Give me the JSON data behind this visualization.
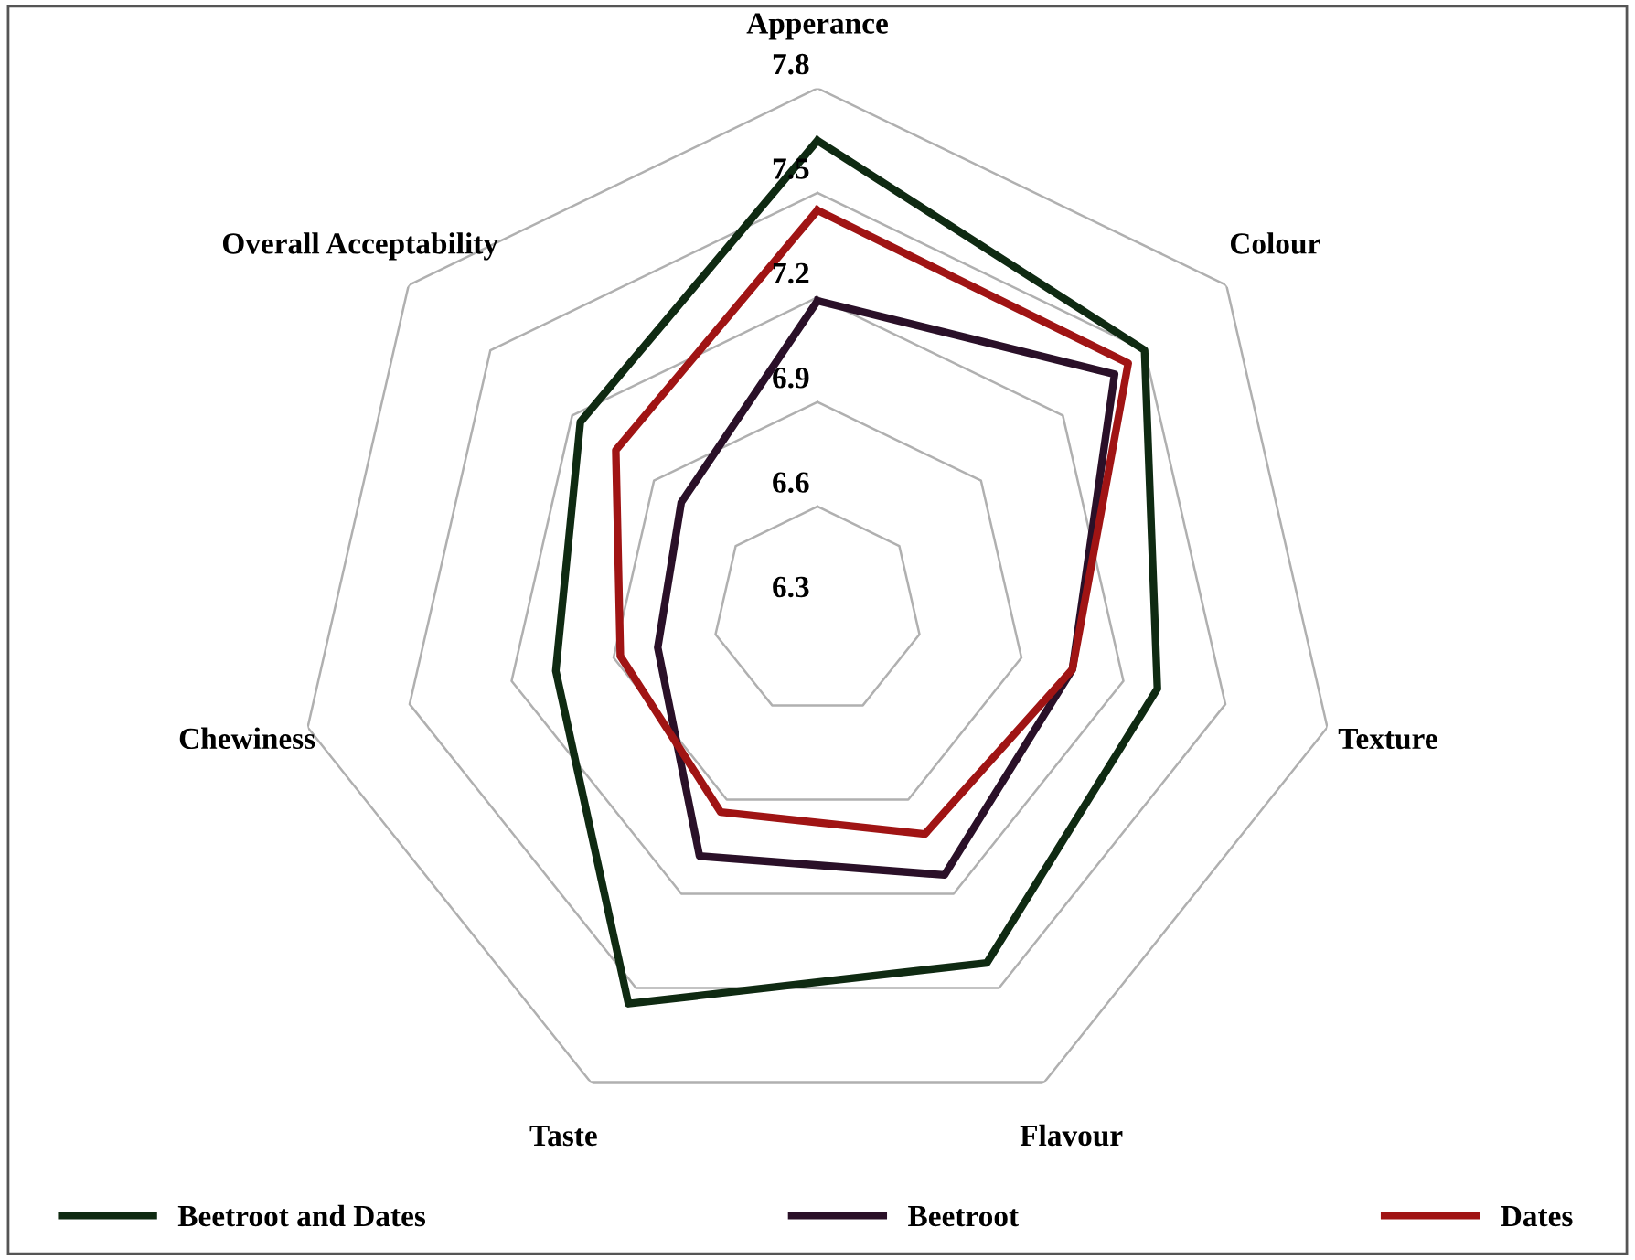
{
  "chart_data": {
    "type": "radar",
    "categories": [
      "Apperance",
      "Colour",
      "Texture",
      "Flavour",
      "Taste",
      "Chewiness",
      "Overall Acceptability"
    ],
    "series": [
      {
        "name": "Beetroot and Dates",
        "color": "#0f2a12",
        "values": [
          7.65,
          7.5,
          7.3,
          7.42,
          7.55,
          7.07,
          7.17
        ]
      },
      {
        "name": "Beetroot",
        "color": "#2a1028",
        "values": [
          7.19,
          7.39,
          7.05,
          7.14,
          7.08,
          6.77,
          6.8
        ]
      },
      {
        "name": "Dates",
        "color": "#a01414",
        "values": [
          7.45,
          7.44,
          7.05,
          7.01,
          6.94,
          6.88,
          7.04
        ]
      }
    ],
    "ylim": [
      6.3,
      7.8
    ],
    "yticks": [
      6.3,
      6.6,
      6.9,
      7.2,
      7.5,
      7.8
    ],
    "grid": true,
    "legend": "bottom",
    "marker": "none",
    "line_style": "solid"
  }
}
